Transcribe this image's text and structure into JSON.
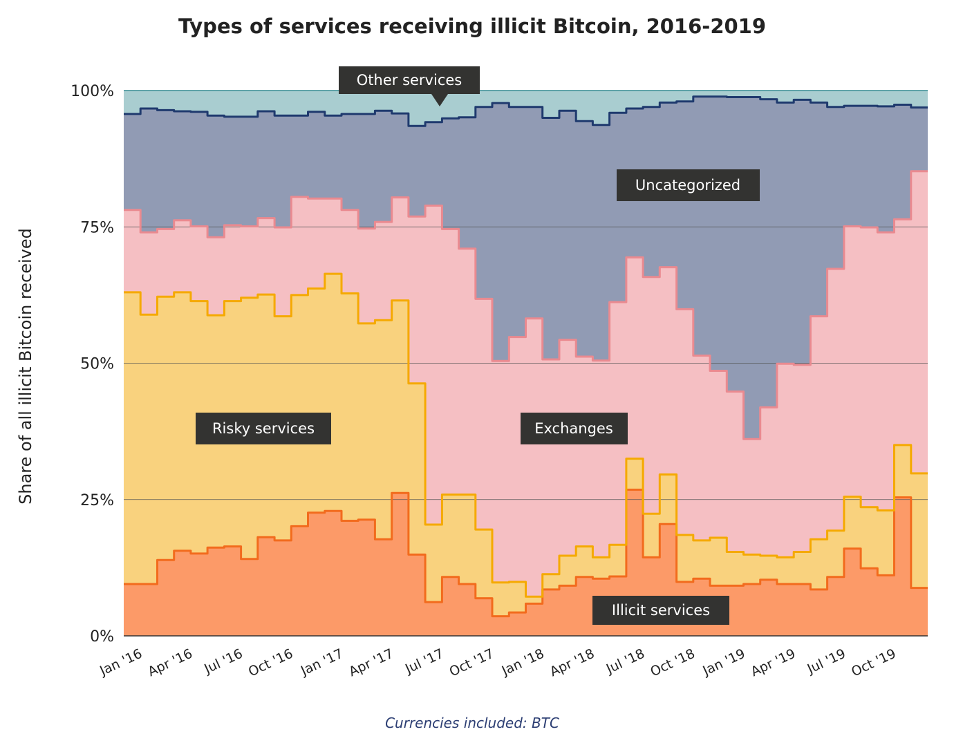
{
  "chart_data": {
    "type": "area",
    "stacked": true,
    "step": true,
    "normalized": true,
    "title": "Types of services receiving illicit Bitcoin, 2016-2019",
    "ylabel": "Share of all illicit Bitcoin received",
    "xlabel": "",
    "ylim": [
      0,
      100
    ],
    "y_ticks": [
      "0%",
      "25%",
      "50%",
      "75%",
      "100%"
    ],
    "y_tick_values": [
      0,
      25,
      50,
      75,
      100
    ],
    "x_tick_labels": [
      "Jan '16",
      "Apr '16",
      "Jul '16",
      "Oct '16",
      "Jan '17",
      "Apr '17",
      "Jul '17",
      "Oct '17",
      "Jan '18",
      "Apr '18",
      "Jul '18",
      "Oct '18",
      "Jan '19",
      "Apr '19",
      "Jul '19",
      "Oct '19"
    ],
    "grid": true,
    "footer": "Currencies included: BTC",
    "x": [
      "2016-01",
      "2016-02",
      "2016-03",
      "2016-04",
      "2016-05",
      "2016-06",
      "2016-07",
      "2016-08",
      "2016-09",
      "2016-10",
      "2016-11",
      "2016-12",
      "2017-01",
      "2017-02",
      "2017-03",
      "2017-04",
      "2017-05",
      "2017-06",
      "2017-07",
      "2017-08",
      "2017-09",
      "2017-10",
      "2017-11",
      "2017-12",
      "2018-01",
      "2018-02",
      "2018-03",
      "2018-04",
      "2018-05",
      "2018-06",
      "2018-07",
      "2018-08",
      "2018-09",
      "2018-10",
      "2018-11",
      "2018-12",
      "2019-01",
      "2019-02",
      "2019-03",
      "2019-04",
      "2019-05",
      "2019-06",
      "2019-07",
      "2019-08",
      "2019-09",
      "2019-10",
      "2019-11",
      "2019-12"
    ],
    "series": [
      {
        "name": "Illicit services",
        "fill": "#FC9A68",
        "line": "#F26B1D",
        "values": [
          9.5,
          9.5,
          13.9,
          15.6,
          15.1,
          16.2,
          16.4,
          14.1,
          18.1,
          17.5,
          20.1,
          22.6,
          22.9,
          21.1,
          21.3,
          17.7,
          26.2,
          14.9,
          6.2,
          10.8,
          9.5,
          6.9,
          3.6,
          4.3,
          5.9,
          8.5,
          9.2,
          10.8,
          10.5,
          10.9,
          26.8,
          14.4,
          20.5,
          9.9,
          10.5,
          9.2,
          9.2,
          9.5,
          10.3,
          9.5,
          9.5,
          8.5,
          10.8,
          16.0,
          12.4,
          11.1,
          25.4,
          8.8
        ]
      },
      {
        "name": "Risky services",
        "fill": "#F9D27E",
        "line": "#F5A900",
        "values": [
          53.5,
          49.4,
          48.3,
          47.4,
          46.3,
          42.6,
          45.0,
          47.9,
          44.5,
          41.1,
          42.4,
          41.1,
          43.5,
          41.7,
          36.0,
          40.2,
          35.3,
          31.4,
          14.2,
          15.1,
          16.4,
          12.6,
          6.2,
          5.6,
          1.3,
          2.8,
          5.5,
          5.6,
          3.9,
          5.8,
          5.7,
          8.0,
          9.1,
          8.6,
          7.0,
          8.8,
          6.2,
          5.4,
          4.4,
          4.9,
          5.9,
          9.2,
          8.5,
          9.5,
          11.2,
          11.9,
          9.6,
          21.0
        ]
      },
      {
        "name": "Exchanges",
        "fill": "#F5BFC3",
        "line": "#EA8A90",
        "values": [
          15.1,
          15.1,
          12.4,
          13.2,
          13.7,
          14.3,
          13.9,
          13.1,
          14.0,
          16.3,
          18.0,
          16.5,
          13.8,
          15.3,
          17.4,
          18.0,
          18.9,
          30.6,
          58.5,
          48.7,
          45.1,
          42.3,
          40.6,
          44.9,
          51.0,
          39.4,
          39.6,
          34.8,
          36.1,
          44.5,
          36.9,
          43.4,
          38.0,
          41.4,
          33.9,
          30.6,
          29.4,
          21.2,
          27.2,
          35.5,
          34.3,
          40.9,
          48.0,
          49.6,
          51.3,
          51.0,
          41.4,
          55.4
        ]
      },
      {
        "name": "Uncategorized",
        "fill": "#919BB4",
        "line": "#1F3A6E",
        "values": [
          17.6,
          22.7,
          21.8,
          20.0,
          21.0,
          22.3,
          19.9,
          20.1,
          19.6,
          20.5,
          14.9,
          15.9,
          15.2,
          17.6,
          21.0,
          20.4,
          15.4,
          16.6,
          15.3,
          20.3,
          24.1,
          35.2,
          47.3,
          42.2,
          38.8,
          44.3,
          42.0,
          43.2,
          43.2,
          34.7,
          27.3,
          31.2,
          30.2,
          38.1,
          47.5,
          50.3,
          54.0,
          62.7,
          56.5,
          47.9,
          48.6,
          39.2,
          29.7,
          22.1,
          22.3,
          23.1,
          21.0,
          11.7
        ]
      },
      {
        "name": "Other services",
        "fill": "#A9CDD0",
        "line": "#5FA3A8",
        "values": [
          4.3,
          3.3,
          3.6,
          3.8,
          3.9,
          4.6,
          4.8,
          4.8,
          3.8,
          4.6,
          4.6,
          3.9,
          4.6,
          4.3,
          4.3,
          3.7,
          4.2,
          6.5,
          5.8,
          5.1,
          4.9,
          3.0,
          2.3,
          3.0,
          3.0,
          5.0,
          3.7,
          5.6,
          6.3,
          4.1,
          3.3,
          3.0,
          2.2,
          2.0,
          1.1,
          1.1,
          1.2,
          1.2,
          1.6,
          2.2,
          1.7,
          2.2,
          3.0,
          2.8,
          2.8,
          2.9,
          2.6,
          3.1
        ]
      }
    ],
    "label_box_color": "#333331"
  }
}
